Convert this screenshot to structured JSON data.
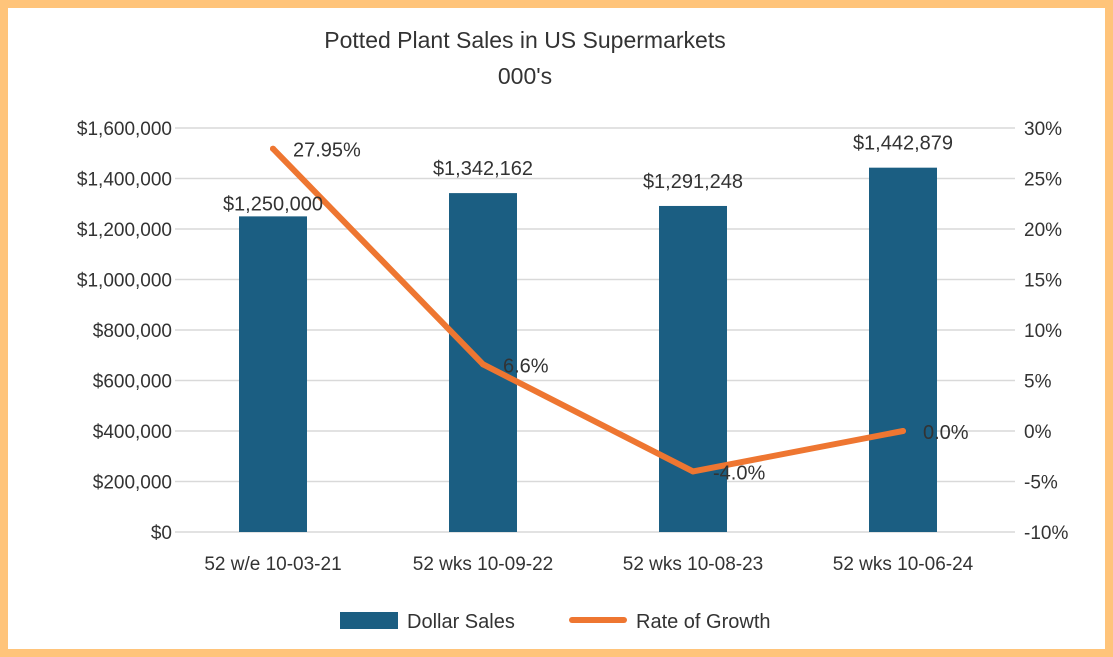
{
  "chart_data": {
    "type": "bar+line",
    "title": "Potted Plant Sales in US Supermarkets",
    "subtitle": "000's",
    "categories": [
      "52 w/e 10-03-21",
      "52 wks 10-09-22",
      "52 wks 10-08-23",
      "52 wks 10-06-24"
    ],
    "series": [
      {
        "name": "Dollar Sales",
        "type": "bar",
        "axis": "left",
        "color": "#1B5E82",
        "values": [
          1250000,
          1342162,
          1291248,
          1442879
        ],
        "labels": [
          "$1,250,000",
          "$1,342,162",
          "$1,291,248",
          "$1,442,879"
        ]
      },
      {
        "name": "Rate of Growth",
        "type": "line",
        "axis": "right",
        "color": "#EE7631",
        "values": [
          27.95,
          6.6,
          -4.0,
          0.0
        ],
        "labels": [
          "27.95%",
          "6.6%",
          "-4.0%",
          "0.0%"
        ]
      }
    ],
    "left_axis": {
      "ylim": [
        0,
        1600000
      ],
      "ticks": [
        "$0",
        "$200,000",
        "$400,000",
        "$600,000",
        "$800,000",
        "$1,000,000",
        "$1,200,000",
        "$1,400,000",
        "$1,600,000"
      ]
    },
    "right_axis": {
      "ylim": [
        -10,
        30
      ],
      "ticks": [
        "-10%",
        "-5%",
        "0%",
        "5%",
        "10%",
        "15%",
        "20%",
        "25%",
        "30%"
      ]
    },
    "grid": true,
    "legend": "bottom"
  }
}
